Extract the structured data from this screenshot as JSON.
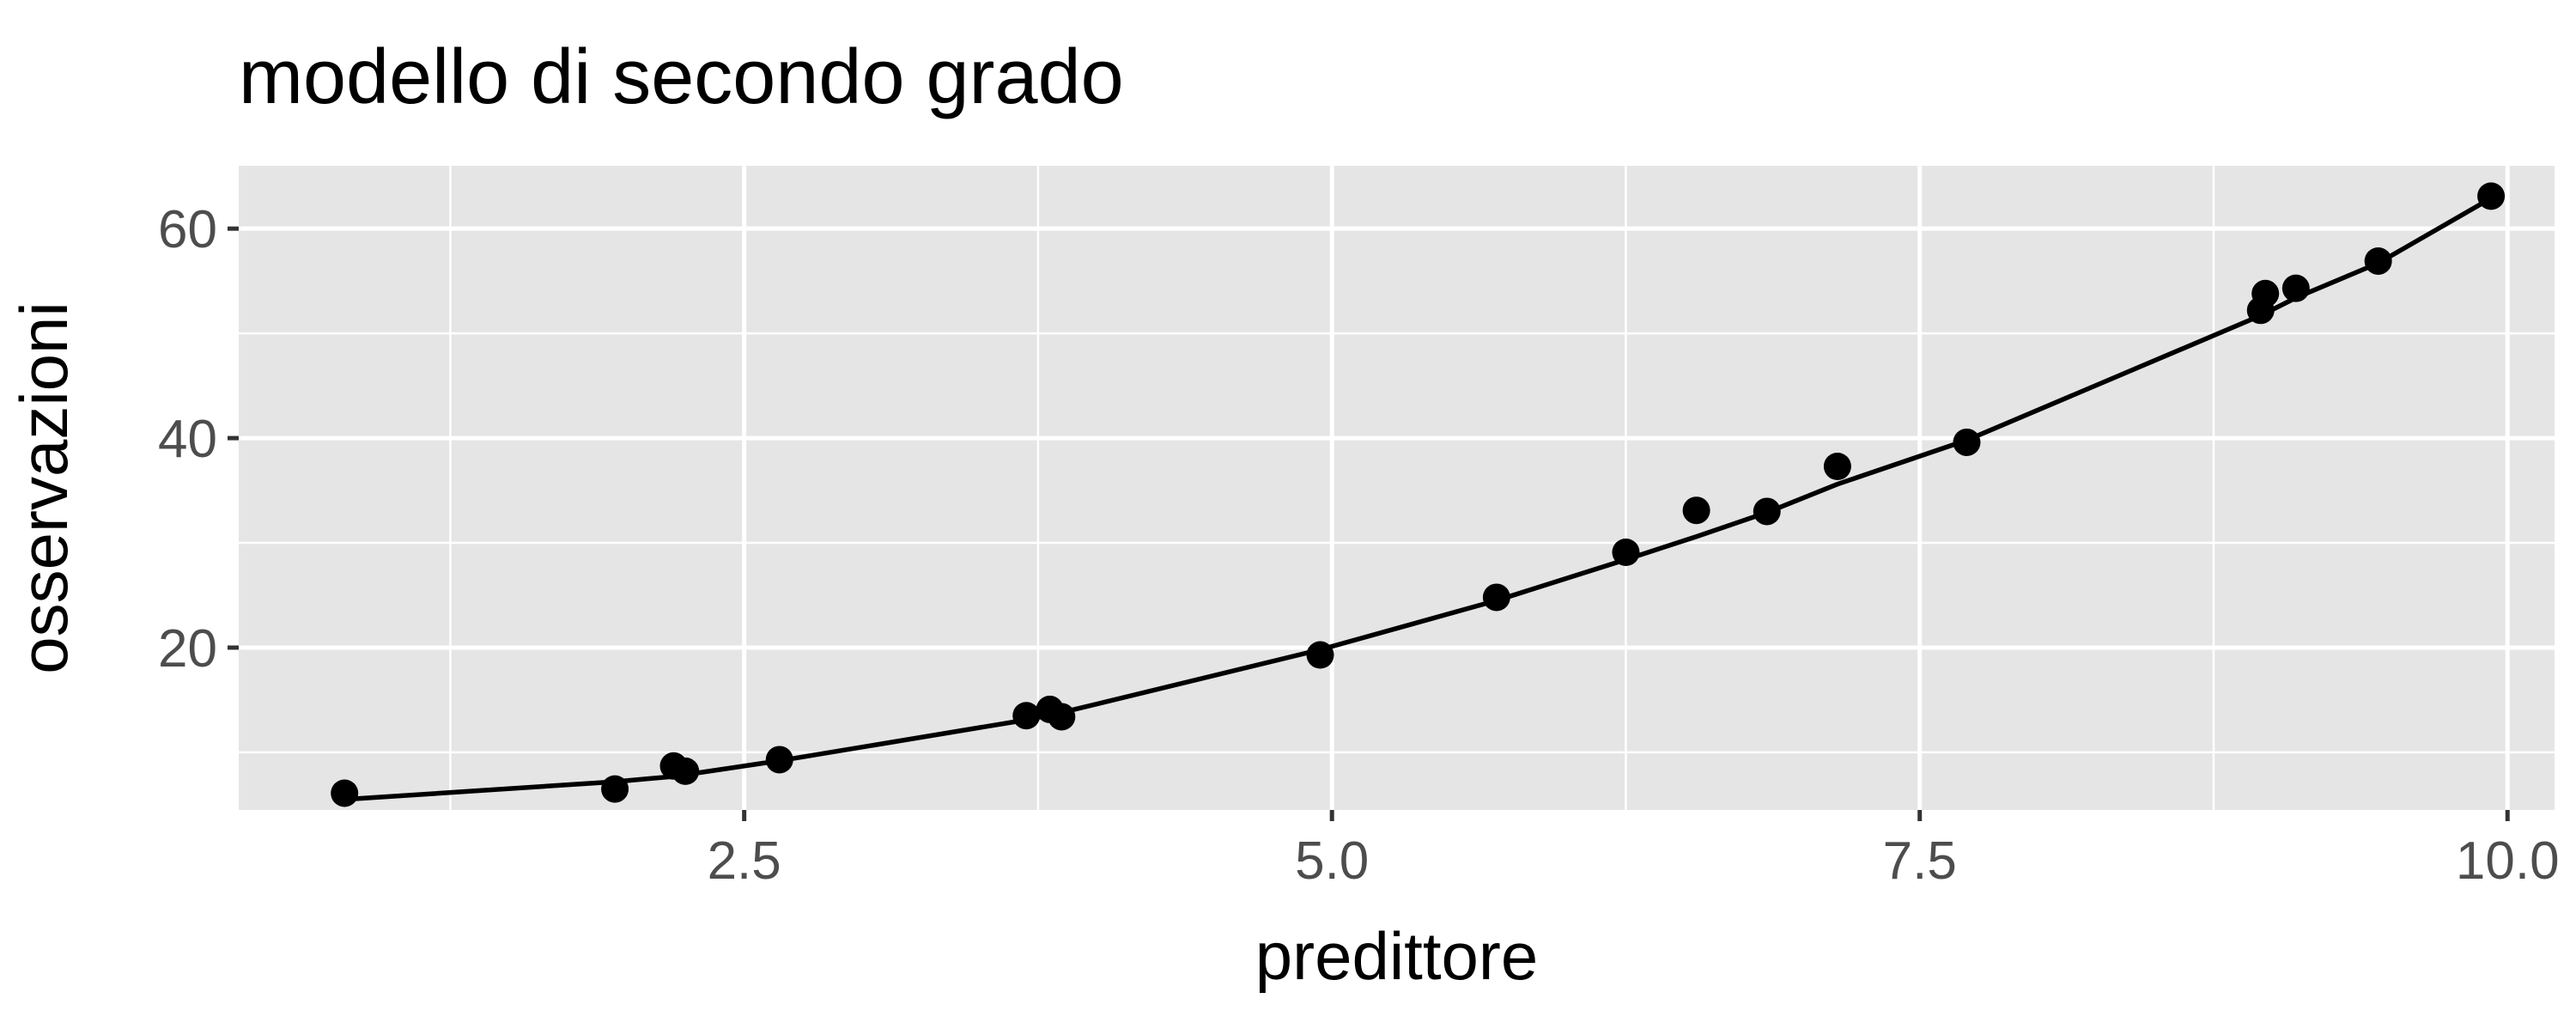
{
  "chart_data": {
    "type": "scatter",
    "title": "modello di secondo grado",
    "xlabel": "predittore",
    "ylabel": "osservazioni",
    "xlim": [
      0.35,
      10.2
    ],
    "ylim": [
      4.5,
      66
    ],
    "xticks": [
      2.5,
      5.0,
      7.5,
      10.0
    ],
    "xtick_labels": [
      "2.5",
      "5.0",
      "7.5",
      "10.0"
    ],
    "yticks": [
      20,
      40,
      60
    ],
    "ytick_labels": [
      "20",
      "40",
      "60"
    ],
    "grid": true,
    "legend": "none",
    "series": [
      {
        "type": "scatter",
        "color": "#000000",
        "points": [
          {
            "x": 0.8,
            "y": 6.1
          },
          {
            "x": 1.95,
            "y": 6.5
          },
          {
            "x": 2.2,
            "y": 8.7
          },
          {
            "x": 2.25,
            "y": 8.2
          },
          {
            "x": 2.65,
            "y": 9.3
          },
          {
            "x": 3.7,
            "y": 13.5
          },
          {
            "x": 3.8,
            "y": 14.1
          },
          {
            "x": 3.85,
            "y": 13.4
          },
          {
            "x": 4.95,
            "y": 19.3
          },
          {
            "x": 5.7,
            "y": 24.8
          },
          {
            "x": 6.25,
            "y": 29.1
          },
          {
            "x": 6.55,
            "y": 33.1
          },
          {
            "x": 6.85,
            "y": 33.0
          },
          {
            "x": 7.15,
            "y": 37.3
          },
          {
            "x": 7.7,
            "y": 39.6
          },
          {
            "x": 8.95,
            "y": 52.2
          },
          {
            "x": 8.97,
            "y": 53.8
          },
          {
            "x": 9.1,
            "y": 54.3
          },
          {
            "x": 9.45,
            "y": 56.9
          },
          {
            "x": 9.93,
            "y": 63.1
          }
        ]
      },
      {
        "type": "line",
        "color": "#000000",
        "points": [
          {
            "x": 0.8,
            "y": 5.5
          },
          {
            "x": 1.95,
            "y": 7.2
          },
          {
            "x": 2.2,
            "y": 7.7
          },
          {
            "x": 2.65,
            "y": 9.2
          },
          {
            "x": 3.7,
            "y": 13.1
          },
          {
            "x": 3.85,
            "y": 13.8
          },
          {
            "x": 4.95,
            "y": 19.8
          },
          {
            "x": 5.7,
            "y": 24.5
          },
          {
            "x": 6.25,
            "y": 28.4
          },
          {
            "x": 6.55,
            "y": 30.6
          },
          {
            "x": 6.85,
            "y": 32.9
          },
          {
            "x": 7.15,
            "y": 35.6
          },
          {
            "x": 7.7,
            "y": 39.8
          },
          {
            "x": 8.95,
            "y": 51.7
          },
          {
            "x": 9.1,
            "y": 53.4
          },
          {
            "x": 9.45,
            "y": 56.7
          },
          {
            "x": 9.93,
            "y": 62.9
          }
        ]
      }
    ],
    "colors": {
      "panel_background": "#e5e5e5",
      "grid_major": "#ffffff",
      "grid_minor": "#f2f2f2",
      "marks": "#000000",
      "tick_text": "#4d4d4d"
    }
  }
}
